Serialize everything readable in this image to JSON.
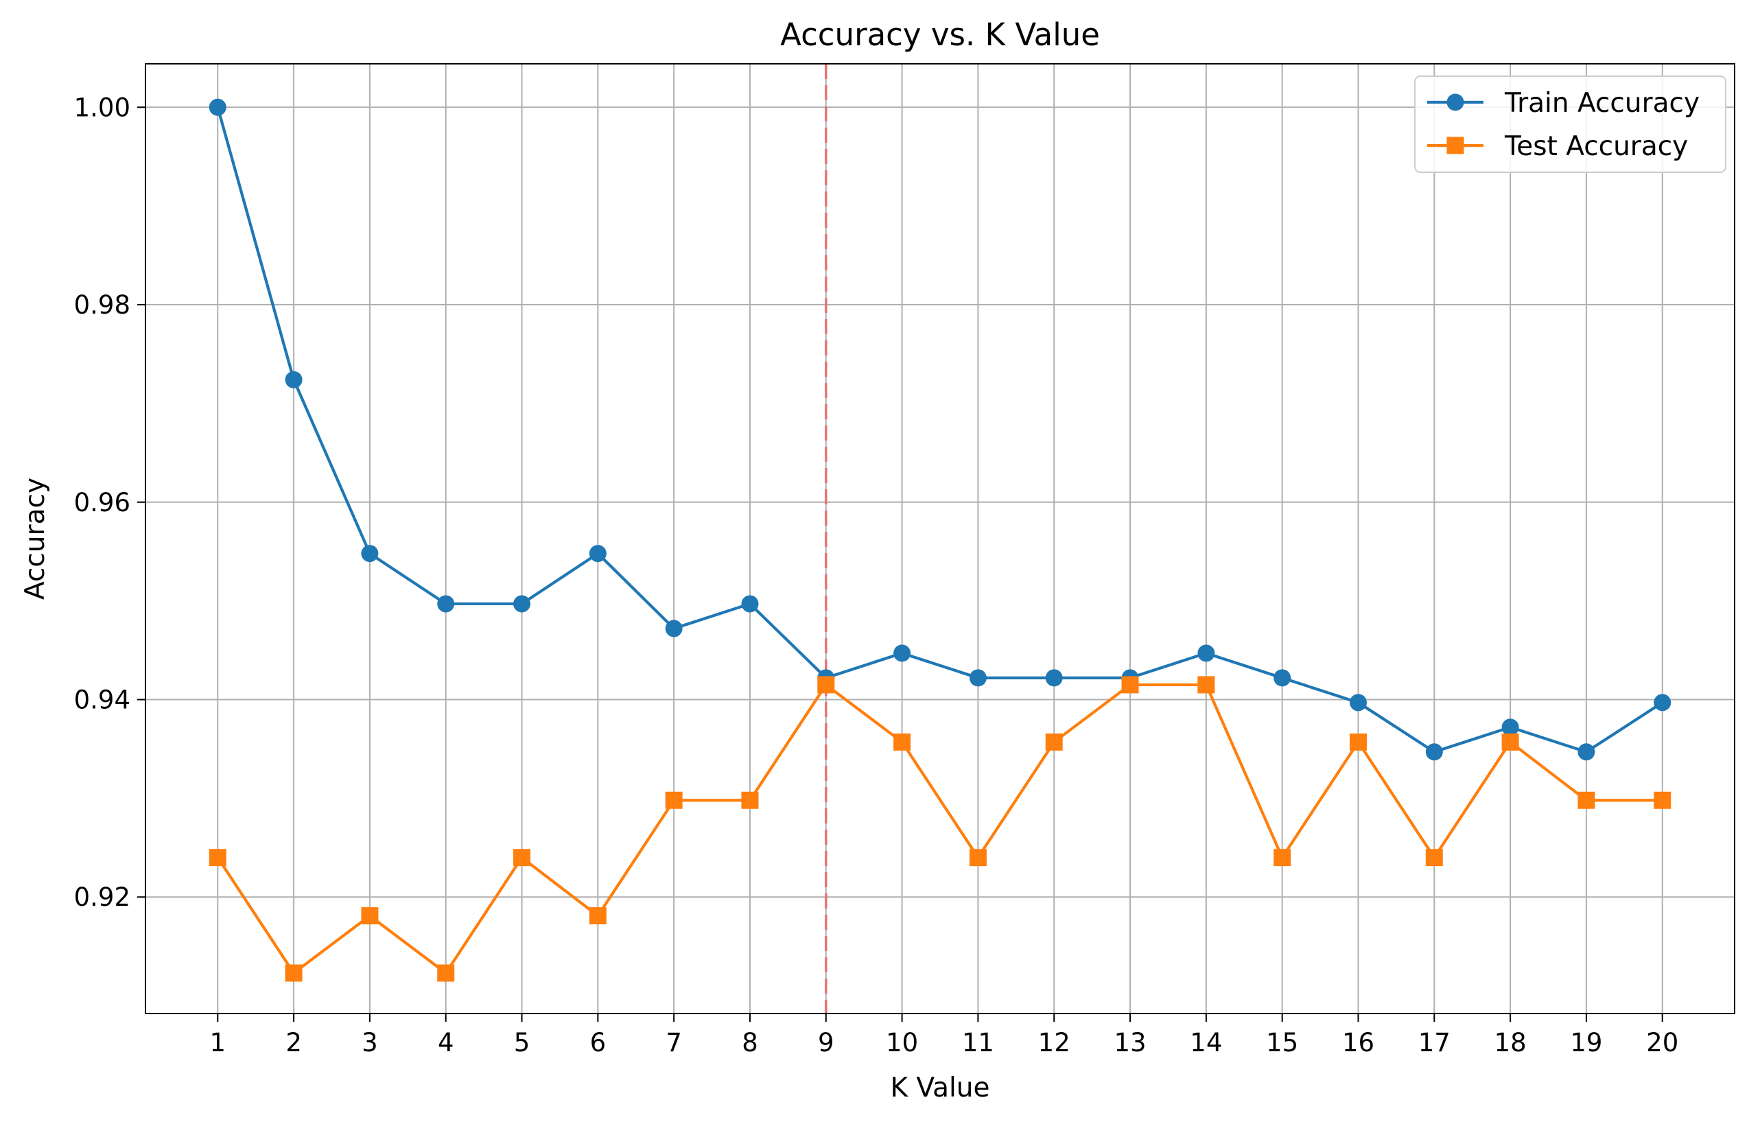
{
  "chart_data": {
    "type": "line",
    "title": "Accuracy vs. K Value",
    "xlabel": "K Value",
    "ylabel": "Accuracy",
    "x": [
      1,
      2,
      3,
      4,
      5,
      6,
      7,
      8,
      9,
      10,
      11,
      12,
      13,
      14,
      15,
      16,
      17,
      18,
      19,
      20
    ],
    "x_tick_labels": [
      "1",
      "2",
      "3",
      "4",
      "5",
      "6",
      "7",
      "8",
      "9",
      "10",
      "11",
      "12",
      "13",
      "14",
      "15",
      "16",
      "17",
      "18",
      "19",
      "20"
    ],
    "y_ticks": [
      0.92,
      0.94,
      0.96,
      0.98,
      1.0
    ],
    "y_tick_labels": [
      "0.92",
      "0.94",
      "0.96",
      "0.98",
      "1.00"
    ],
    "xlim": [
      0.05,
      20.95
    ],
    "ylim": [
      0.9082,
      1.0044
    ],
    "grid": true,
    "legend_position": "top-right",
    "series": [
      {
        "name": "Train Accuracy",
        "color": "#1f77b4",
        "marker": "circle",
        "values": [
          1.0,
          0.9724,
          0.9548,
          0.9497,
          0.9497,
          0.9548,
          0.9472,
          0.9497,
          0.9422,
          0.9447,
          0.9422,
          0.9422,
          0.9422,
          0.9447,
          0.9422,
          0.9397,
          0.9347,
          0.9372,
          0.9347,
          0.9397
        ]
      },
      {
        "name": "Test Accuracy",
        "color": "#ff7f0e",
        "marker": "square",
        "values": [
          0.924,
          0.9123,
          0.9181,
          0.9123,
          0.924,
          0.9181,
          0.9298,
          0.9298,
          0.9415,
          0.9357,
          0.924,
          0.9357,
          0.9415,
          0.9415,
          0.924,
          0.9357,
          0.924,
          0.9357,
          0.9298,
          0.9298
        ]
      }
    ],
    "reference_line": {
      "x": 9,
      "color": "#e87373",
      "style": "dashed"
    }
  }
}
